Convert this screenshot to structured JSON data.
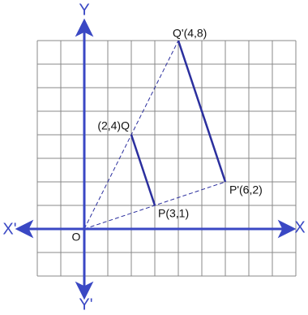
{
  "axes": {
    "x": "X",
    "x_neg": "X'",
    "y": "Y",
    "y_neg": "Y'",
    "origin": "O"
  },
  "points": [
    {
      "label": "P(3,1)",
      "x": 3,
      "y": 1
    },
    {
      "label": "(2,4)Q",
      "x": 2,
      "y": 4
    },
    {
      "label": "P'(6,2)",
      "x": 6,
      "y": 2
    },
    {
      "label": "Q'(4,8)",
      "x": 4,
      "y": 8
    }
  ]
}
